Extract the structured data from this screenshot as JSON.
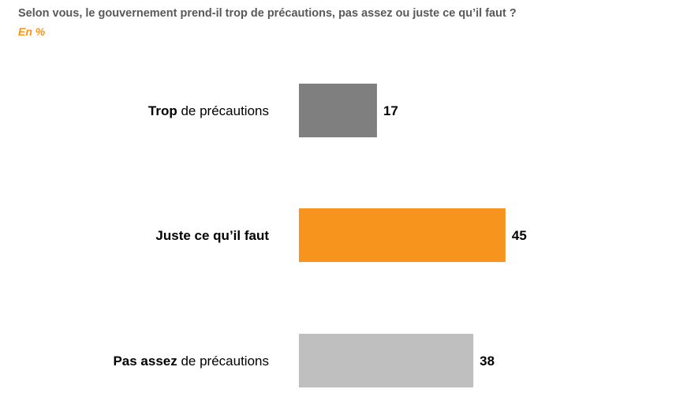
{
  "header": {
    "title": "Selon vous, le gouvernement prend-il trop de précautions, pas assez ou juste ce qu’il faut ?",
    "subtitle": "En %"
  },
  "chart_data": {
    "type": "bar",
    "orientation": "horizontal",
    "title": "Selon vous, le gouvernement prend-il trop de précautions, pas assez ou juste ce qu’il faut ?",
    "subtitle": "En %",
    "xlim": [
      0,
      100
    ],
    "grid": false,
    "legend": "none",
    "categories": [
      "Trop de précautions",
      "Juste ce qu’il faut",
      "Pas assez de précautions"
    ],
    "category_parts": [
      [
        {
          "text": "Trop",
          "bold": true
        },
        {
          "text": " de précautions",
          "bold": false
        }
      ],
      [
        {
          "text": "Juste ce qu’il faut",
          "bold": true
        }
      ],
      [
        {
          "text": "Pas assez",
          "bold": true
        },
        {
          "text": " de précautions",
          "bold": false
        }
      ]
    ],
    "values": [
      17,
      45,
      38
    ],
    "colors": [
      "#7F7F7F",
      "#F7941D",
      "#BFBFBF"
    ]
  }
}
